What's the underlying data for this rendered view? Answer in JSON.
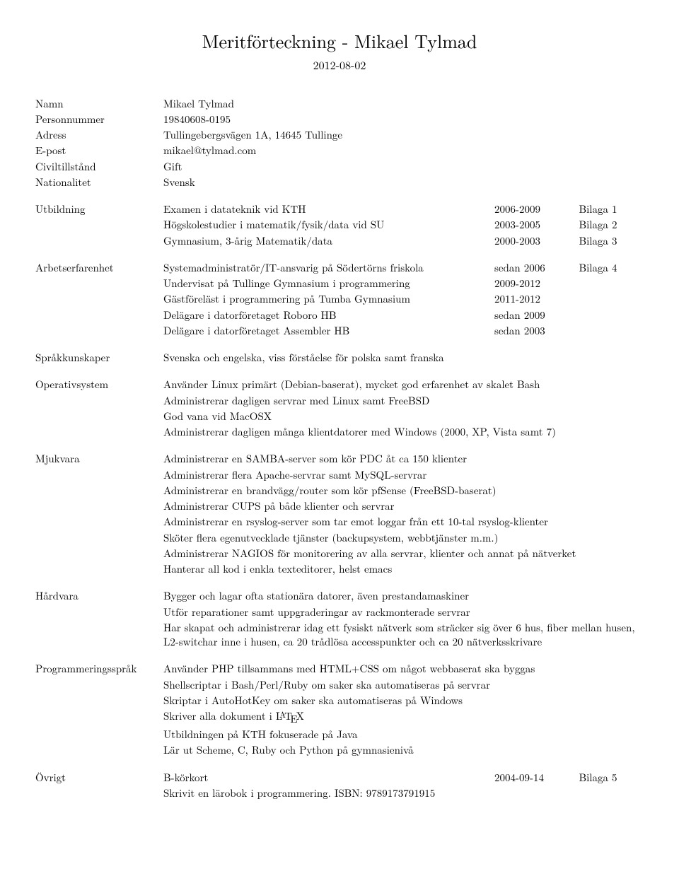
{
  "title": "Meritförteckning - Mikael Tylmad",
  "date": "2012-08-02",
  "personal": {
    "name_label": "Namn",
    "name": "Mikael Tylmad",
    "pnr_label": "Personnummer",
    "pnr": "19840608-0195",
    "addr_label": "Adress",
    "addr": "Tullingebergsvägen 1A, 14645 Tullinge",
    "email_label": "E-post",
    "email": "mikael@tylmad.com",
    "civil_label": "Civiltillstånd",
    "civil": "Gift",
    "nat_label": "Nationalitet",
    "nat": "Svensk"
  },
  "education": {
    "label": "Utbildning",
    "rows": [
      {
        "desc": "Examen i datateknik vid KTH",
        "when": "2006-2009",
        "att": "Bilaga 1"
      },
      {
        "desc": "Högskolestudier i matematik/fysik/data vid SU",
        "when": "2003-2005",
        "att": "Bilaga 2"
      },
      {
        "desc": "Gymnasium, 3-årig Matematik/data",
        "when": "2000-2003",
        "att": "Bilaga 3"
      }
    ]
  },
  "work": {
    "label": "Arbetserfarenhet",
    "rows": [
      {
        "desc": "Systemadministratör/IT-ansvarig på Södertörns friskola",
        "when": "sedan 2006",
        "att": "Bilaga 4"
      },
      {
        "desc": "Undervisat på Tullinge Gymnasium i programmering",
        "when": "2009-2012",
        "att": ""
      },
      {
        "desc": "Gästföreläst i programmering på Tumba Gymnasium",
        "when": "2011-2012",
        "att": ""
      },
      {
        "desc": "Delägare i datorföretaget Roboro HB",
        "when": "sedan 2009",
        "att": ""
      },
      {
        "desc": "Delägare i datorföretaget Assembler HB",
        "when": "sedan 2003",
        "att": ""
      }
    ]
  },
  "lang": {
    "label": "Språkkunskaper",
    "text": "Svenska och engelska, viss förståelse för polska samt franska"
  },
  "os": {
    "label": "Operativsystem",
    "lines": [
      "Använder Linux primärt (Debian-baserat), mycket god erfarenhet av skalet Bash",
      "Administrerar dagligen servrar med Linux samt FreeBSD",
      "God vana vid MacOSX",
      "Administrerar dagligen många klientdatorer med Windows (2000, XP, Vista samt 7)"
    ]
  },
  "sw": {
    "label": "Mjukvara",
    "lines": [
      "Administrerar en SAMBA-server som kör PDC åt ca 150 klienter",
      "Administrerar flera Apache-servrar samt MySQL-servrar",
      "Administrerar en brandvägg/router som kör pfSense (FreeBSD-baserat)",
      "Administrerar CUPS på både klienter och servrar",
      "Administrerar en rsyslog-server som tar emot loggar från ett 10-tal rsyslog-klienter",
      "Sköter flera egenutvecklade tjänster (backupsystem, webbtjänster m.m.)",
      "Administrerar NAGIOS för monitorering av alla servrar, klienter och annat på nätverket",
      "Hanterar all kod i enkla texteditorer, helst emacs"
    ]
  },
  "hw": {
    "label": "Hårdvara",
    "lines": [
      "Bygger och lagar ofta stationära datorer, även prestandamaskiner",
      "Utför reparationer samt uppgraderingar av rackmonterade servrar",
      "Har skapat och administrerar idag ett fysiskt nätverk som sträcker sig över 6 hus, fiber mellan husen, L2-switchar inne i husen, ca 20 trådlösa accesspunkter och ca 20 nätverksskrivare"
    ]
  },
  "prog": {
    "label": "Programmeringsspråk",
    "lines": [
      "Använder PHP tillsammans med HTML+CSS om något webbaserat ska byggas",
      "Shellscriptar i Bash/Perl/Ruby om saker ska automatiseras på servrar",
      "Skriptar i AutoHotKey om saker ska automatiseras på Windows"
    ],
    "latex_prefix": "Skriver alla dokument i ",
    "tail_lines": [
      "Utbildningen på KTH fokuserade på Java",
      "Lär ut Scheme, C, Ruby och Python på gymnasienivå"
    ]
  },
  "other": {
    "label": "Övrigt",
    "row": {
      "desc": "B-körkort",
      "when": "2004-09-14",
      "att": "Bilaga 5"
    },
    "line": "Skrivit en lärobok i programmering. ISBN: 9789173791915"
  }
}
